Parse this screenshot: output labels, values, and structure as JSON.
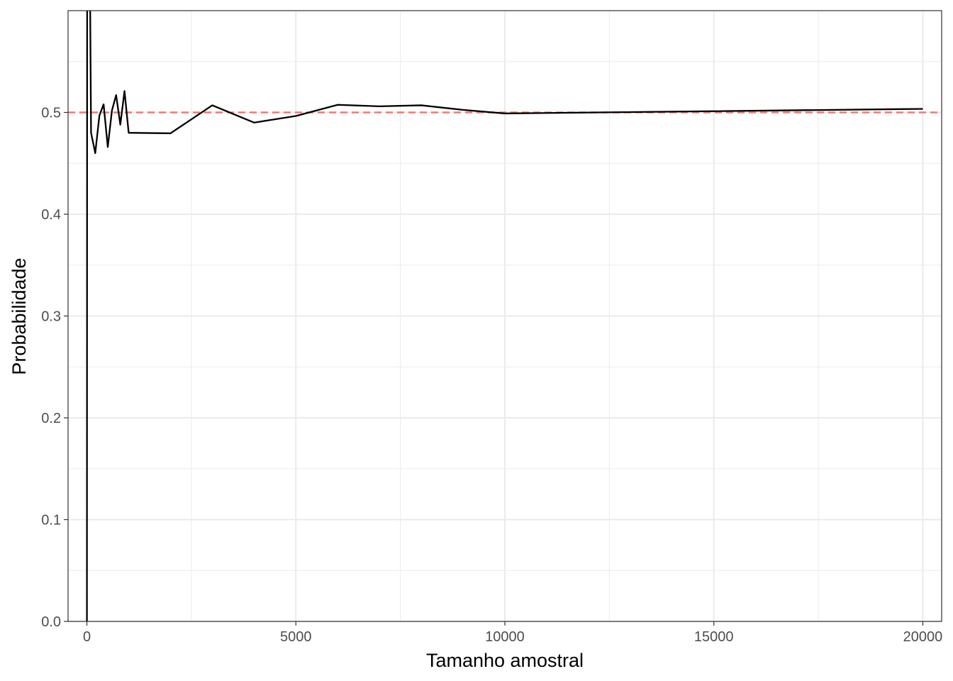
{
  "chart_data": {
    "type": "line",
    "title": "",
    "xlabel": "Tamanho amostral",
    "ylabel": "Probabilidade",
    "xlim": [
      -450,
      20450
    ],
    "ylim": [
      0.0,
      0.6
    ],
    "x_ticks": [
      0,
      5000,
      10000,
      15000,
      20000
    ],
    "x_tick_labels": [
      "0",
      "5000",
      "10000",
      "15000",
      "20000"
    ],
    "x_minor_ticks": [
      2500,
      7500,
      12500,
      17500
    ],
    "y_ticks": [
      0.0,
      0.1,
      0.2,
      0.3,
      0.4,
      0.5
    ],
    "y_tick_labels": [
      "0.0",
      "0.1",
      "0.2",
      "0.3",
      "0.4",
      "0.5"
    ],
    "y_minor_ticks": [
      0.05,
      0.15,
      0.25,
      0.35,
      0.45,
      0.55
    ],
    "grid": true,
    "legend": "none",
    "series": [
      {
        "color": "#000000",
        "x": [
          1,
          10,
          100,
          200,
          300,
          400,
          500,
          600,
          700,
          800,
          900,
          1000,
          2000,
          3000,
          4000,
          5000,
          6000,
          7000,
          8000,
          9000,
          10000,
          20000
        ],
        "y": [
          0.0,
          1.0,
          0.48,
          0.46,
          0.497,
          0.508,
          0.466,
          0.502,
          0.517,
          0.488,
          0.521,
          0.48,
          0.4795,
          0.507,
          0.49,
          0.4965,
          0.5075,
          0.506,
          0.507,
          0.5025,
          0.499,
          0.5035
        ]
      }
    ],
    "reference_lines": [
      {
        "y": 0.5,
        "color": "#f8766d",
        "style": "dashed"
      }
    ]
  }
}
